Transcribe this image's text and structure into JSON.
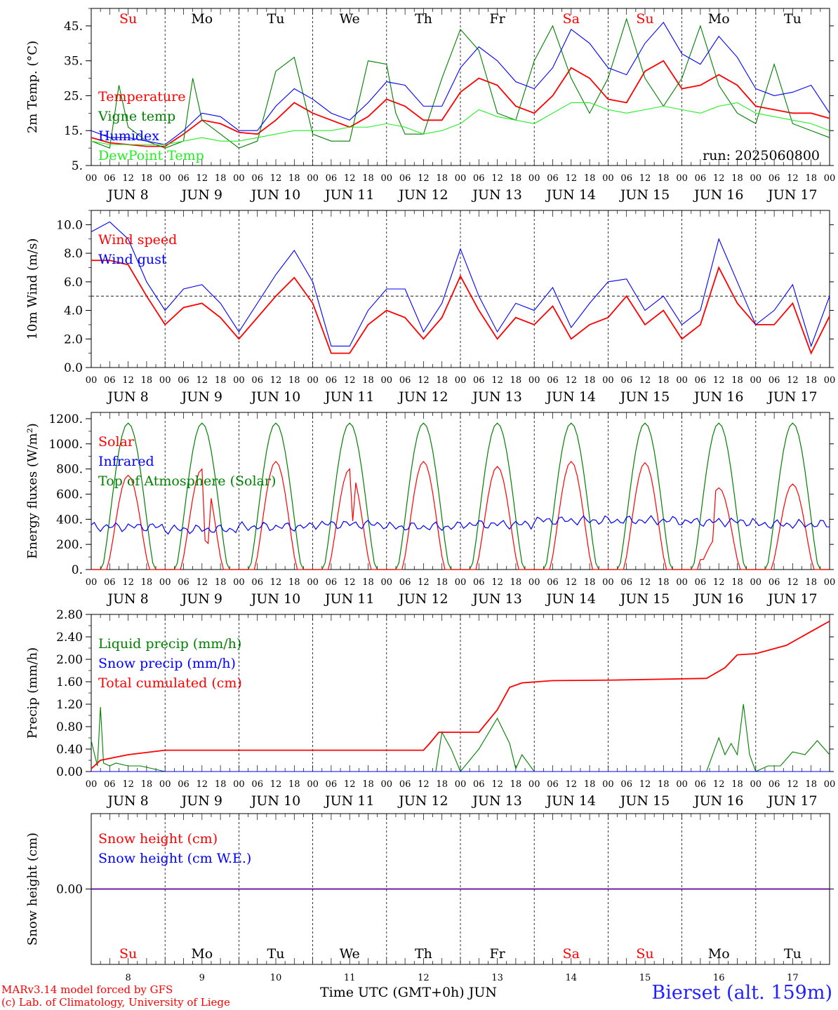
{
  "run_label": "run: 2025060800",
  "footer": {
    "model": "MARv3.14 model forced by GFS",
    "lab": "(c) Lab. of Climatology, University of Liege",
    "axis_title": "Time UTC (GMT+0h) JUN",
    "station": "Bierset (alt. 159m)"
  },
  "colors": {
    "red": "#ff0000",
    "blue": "#0000ff",
    "green": "#008000",
    "lightgreen": "#22ee22",
    "grid": "#000000"
  },
  "days": {
    "weekday_labels": [
      "Su",
      "Mo",
      "Tu",
      "We",
      "Th",
      "Fr",
      "Sa",
      "Su",
      "Mo",
      "Tu"
    ],
    "weekday_colors": [
      "red",
      "black",
      "black",
      "black",
      "black",
      "black",
      "red",
      "red",
      "black",
      "black"
    ],
    "date_labels": [
      "JUN  8",
      "JUN  9",
      "JUN 10",
      "JUN 11",
      "JUN 12",
      "JUN 13",
      "JUN 14",
      "JUN 15",
      "JUN 16",
      "JUN 17"
    ],
    "day_numbers": [
      "8",
      "9",
      "10",
      "11",
      "12",
      "13",
      "14",
      "15",
      "16",
      "17"
    ],
    "hour_labels": [
      "00",
      "06",
      "12",
      "18"
    ],
    "last_hour_label": "00"
  },
  "chart_data": [
    {
      "id": "temperature",
      "type": "line",
      "ylabel": "2m Temp. (°C)",
      "ylim": [
        5,
        50
      ],
      "yticks": [
        {
          "v": 5,
          "label": "5."
        },
        {
          "v": 15,
          "label": "15."
        },
        {
          "v": 25,
          "label": "25."
        },
        {
          "v": 35,
          "label": "35."
        },
        {
          "v": 45,
          "label": "45."
        }
      ],
      "x_range_hours": [
        0,
        240
      ],
      "series": [
        {
          "name": "Temperature",
          "color": "#ff0000",
          "x": [
            0,
            6,
            12,
            18,
            24,
            30,
            36,
            42,
            48,
            54,
            60,
            66,
            72,
            78,
            84,
            90,
            96,
            102,
            108,
            114,
            120,
            126,
            132,
            138,
            144,
            150,
            156,
            162,
            168,
            174,
            180,
            186,
            192,
            198,
            204,
            210,
            216,
            222,
            228,
            234,
            240
          ],
          "values": [
            13,
            11.5,
            11,
            10.5,
            10.5,
            14,
            18,
            17,
            14.5,
            14,
            18,
            23,
            20,
            18,
            16,
            19,
            24,
            22,
            18,
            18,
            26,
            30,
            28,
            22,
            20,
            25,
            33,
            30,
            24,
            23,
            32,
            35,
            27,
            28,
            31,
            28,
            22,
            21,
            20,
            20,
            18.5
          ]
        },
        {
          "name": "Vigne temp",
          "color": "#008000",
          "x": [
            0,
            6,
            9,
            12,
            18,
            24,
            30,
            33,
            36,
            42,
            48,
            54,
            60,
            66,
            72,
            78,
            84,
            90,
            96,
            99,
            102,
            108,
            114,
            120,
            126,
            132,
            138,
            144,
            150,
            156,
            162,
            168,
            174,
            180,
            186,
            192,
            198,
            204,
            210,
            216,
            222,
            228,
            234,
            240
          ],
          "values": [
            12,
            10,
            28,
            16,
            12,
            10,
            12,
            30,
            18,
            14,
            10,
            12,
            32,
            36,
            14,
            12,
            12,
            35,
            34,
            20,
            14,
            14,
            30,
            44,
            38,
            20,
            18,
            35,
            45,
            30,
            20,
            30,
            47,
            30,
            22,
            30,
            45,
            28,
            20,
            17,
            34,
            17,
            15,
            13
          ]
        },
        {
          "name": "Humidex",
          "color": "#0000ff",
          "x": [
            0,
            6,
            12,
            18,
            24,
            30,
            36,
            42,
            48,
            54,
            60,
            66,
            72,
            78,
            84,
            90,
            96,
            102,
            108,
            114,
            120,
            126,
            132,
            138,
            144,
            150,
            156,
            162,
            168,
            174,
            180,
            186,
            192,
            198,
            204,
            210,
            216,
            222,
            228,
            234,
            240
          ],
          "values": [
            15,
            13,
            13,
            12,
            11,
            15,
            20,
            19,
            15,
            15,
            22,
            27,
            24,
            20,
            18,
            23,
            29,
            28,
            22,
            22,
            33,
            39,
            35,
            29,
            27,
            33,
            44,
            40,
            33,
            31,
            40,
            46,
            37,
            34,
            42,
            36,
            27,
            25,
            26,
            28,
            20
          ]
        },
        {
          "name": "DewPoint Temp",
          "color": "#22ee22",
          "x": [
            0,
            6,
            12,
            18,
            24,
            30,
            36,
            42,
            48,
            54,
            60,
            66,
            72,
            78,
            84,
            90,
            96,
            102,
            108,
            114,
            120,
            126,
            132,
            138,
            144,
            150,
            156,
            162,
            168,
            174,
            180,
            186,
            192,
            198,
            204,
            210,
            216,
            222,
            228,
            234,
            240
          ],
          "values": [
            12,
            11,
            11,
            11,
            11,
            12,
            13,
            12,
            12,
            13,
            14,
            15,
            15,
            15,
            16,
            16,
            17,
            16,
            14,
            15,
            17,
            21,
            19,
            18,
            17,
            20,
            23,
            23,
            21,
            20,
            21,
            22,
            21,
            20,
            22,
            23,
            20,
            19,
            18,
            17,
            15
          ]
        }
      ]
    },
    {
      "id": "wind",
      "type": "line",
      "ylabel": "10m Wind (m/s)",
      "ylim": [
        0,
        11
      ],
      "yticks": [
        {
          "v": 0,
          "label": "0.0"
        },
        {
          "v": 2,
          "label": "2.0"
        },
        {
          "v": 4,
          "label": "4.0"
        },
        {
          "v": 6,
          "label": "6.0"
        },
        {
          "v": 8,
          "label": "8.0"
        },
        {
          "v": 10,
          "label": "10.0"
        }
      ],
      "reference_line": 5,
      "x_range_hours": [
        0,
        240
      ],
      "series": [
        {
          "name": "Wind speed",
          "color": "#ff0000",
          "x": [
            0,
            6,
            12,
            18,
            24,
            30,
            36,
            42,
            48,
            54,
            60,
            66,
            72,
            78,
            84,
            90,
            96,
            102,
            108,
            114,
            120,
            126,
            132,
            138,
            144,
            150,
            156,
            162,
            168,
            174,
            180,
            186,
            192,
            198,
            204,
            210,
            216,
            222,
            228,
            234,
            240
          ],
          "values": [
            7.5,
            7.5,
            7.2,
            5,
            3,
            4.2,
            4.5,
            3.5,
            2,
            3.5,
            5,
            6.3,
            4.5,
            1,
            1,
            3,
            4,
            3.5,
            2,
            3.5,
            6.4,
            4,
            2,
            3.5,
            3,
            4.3,
            2,
            3,
            3.5,
            5,
            3,
            4,
            2,
            3,
            7,
            4.5,
            3,
            3,
            4.5,
            1,
            3.6
          ]
        },
        {
          "name": "Wind gust",
          "color": "#0000ff",
          "x": [
            0,
            6,
            12,
            18,
            24,
            30,
            36,
            42,
            48,
            54,
            60,
            66,
            72,
            78,
            84,
            90,
            96,
            102,
            108,
            114,
            120,
            126,
            132,
            138,
            144,
            150,
            156,
            162,
            168,
            174,
            180,
            186,
            192,
            198,
            204,
            210,
            216,
            222,
            228,
            234,
            240
          ],
          "values": [
            9.5,
            10.2,
            9,
            6,
            4,
            5.5,
            5.8,
            4.5,
            2.5,
            4.5,
            6.5,
            8.2,
            6,
            1.5,
            1.5,
            4,
            5.5,
            5.5,
            2.5,
            4.5,
            8.3,
            5,
            2.5,
            4.5,
            4,
            5.6,
            2.8,
            4.5,
            6,
            6.2,
            4,
            5,
            3,
            4,
            9,
            6,
            3,
            4,
            5.8,
            1.5,
            5
          ]
        }
      ]
    },
    {
      "id": "energy",
      "type": "line",
      "ylabel": "Energy fluxes (W/m²)",
      "ylim": [
        0,
        1250
      ],
      "yticks": [
        {
          "v": 0,
          "label": "0."
        },
        {
          "v": 200,
          "label": "200."
        },
        {
          "v": 400,
          "label": "400."
        },
        {
          "v": 600,
          "label": "600."
        },
        {
          "v": 800,
          "label": "800."
        },
        {
          "v": 1000,
          "label": "1000."
        },
        {
          "v": 1200,
          "label": "1200."
        }
      ],
      "x_range_hours": [
        0,
        240
      ],
      "toa_peak": 1165,
      "solar_peaks": [
        750,
        800,
        860,
        800,
        860,
        820,
        860,
        850,
        650,
        680
      ],
      "infrared_level": [
        340,
        320,
        340,
        360,
        340,
        360,
        390,
        390,
        380,
        360
      ],
      "series": [
        {
          "name": "Solar",
          "color": "#ff0000"
        },
        {
          "name": "Infrared",
          "color": "#0000ff"
        },
        {
          "name": "Top of Atmosphere (Solar)",
          "color": "#008000"
        }
      ]
    },
    {
      "id": "precip",
      "type": "line",
      "ylabel": "Precip (mm/h)",
      "ylim": [
        0,
        2.8
      ],
      "yticks": [
        {
          "v": 0,
          "label": "0.00"
        },
        {
          "v": 0.4,
          "label": "0.40"
        },
        {
          "v": 0.8,
          "label": "0.80"
        },
        {
          "v": 1.2,
          "label": "1.20"
        },
        {
          "v": 1.6,
          "label": "1.60"
        },
        {
          "v": 2.0,
          "label": "2.00"
        },
        {
          "v": 2.4,
          "label": "2.40"
        },
        {
          "v": 2.8,
          "label": "2.80"
        }
      ],
      "x_range_hours": [
        0,
        240
      ],
      "series": [
        {
          "name": "Liquid precip (mm/h)",
          "color": "#008000",
          "x": [
            0,
            2,
            3,
            4,
            6,
            8,
            12,
            16,
            20,
            24,
            112,
            114,
            117,
            120,
            126,
            132,
            136,
            138,
            140,
            144,
            148,
            160,
            184,
            200,
            204,
            206,
            208,
            210,
            212,
            214,
            216,
            220,
            224,
            228,
            232,
            236,
            240
          ],
          "values": [
            0.55,
            0.1,
            1.15,
            0.15,
            0.1,
            0.15,
            0.1,
            0.1,
            0.05,
            0,
            0,
            0.7,
            0.4,
            0,
            0.4,
            0.95,
            0.5,
            0.05,
            0.3,
            0,
            0,
            0,
            0,
            0,
            0.6,
            0.3,
            0.5,
            0.3,
            1.2,
            0.3,
            0,
            0.1,
            0.1,
            0.35,
            0.3,
            0.55,
            0.3
          ]
        },
        {
          "name": "Snow precip (mm/h)",
          "color": "#0000ff",
          "x": [
            0,
            240
          ],
          "values": [
            0,
            0
          ]
        },
        {
          "name": "Total cumulated (cm)",
          "color": "#ff0000",
          "x": [
            0,
            3,
            12,
            24,
            108,
            110,
            113,
            120,
            126,
            132,
            136,
            140,
            150,
            170,
            200,
            206,
            210,
            216,
            226,
            240
          ],
          "values": [
            0.05,
            0.2,
            0.3,
            0.38,
            0.38,
            0.5,
            0.7,
            0.7,
            0.7,
            1.1,
            1.5,
            1.58,
            1.62,
            1.63,
            1.66,
            1.85,
            2.08,
            2.1,
            2.25,
            2.68
          ]
        }
      ]
    },
    {
      "id": "snow",
      "type": "line",
      "ylabel": "Snow height (cm)",
      "ylim": [
        -1,
        1
      ],
      "yticks": [
        {
          "v": 0,
          "label": "0.00"
        }
      ],
      "x_range_hours": [
        0,
        240
      ],
      "series": [
        {
          "name": "Snow height (cm)",
          "color": "#ff0000",
          "x": [
            0,
            240
          ],
          "values": [
            0,
            0
          ]
        },
        {
          "name": "Snow height (cm W.E.)",
          "color": "#0000ff",
          "x": [
            0,
            240
          ],
          "values": [
            0,
            0
          ]
        }
      ]
    }
  ]
}
